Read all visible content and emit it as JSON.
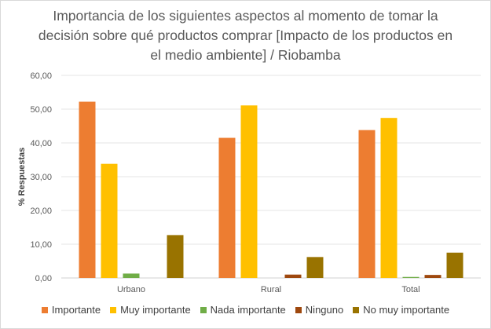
{
  "chart_data": {
    "type": "bar",
    "title": "Importancia de los siguientes aspectos al momento de tomar la decisión sobre qué productos comprar [Impacto de los productos en el medio ambiente] / Riobamba",
    "xlabel": "",
    "ylabel": "% Respuestas",
    "ylim": [
      0,
      60
    ],
    "yticks": [
      "0,00",
      "10,00",
      "20,00",
      "30,00",
      "40,00",
      "50,00",
      "60,00"
    ],
    "grid": true,
    "legend_position": "bottom",
    "categories": [
      "Urbano",
      "Rural",
      "Total"
    ],
    "series": [
      {
        "name": "Importante",
        "color": "#ED7D31",
        "values": [
          52.2,
          41.5,
          43.8
        ]
      },
      {
        "name": "Muy importante",
        "color": "#FFC000",
        "values": [
          33.8,
          51.1,
          47.4
        ]
      },
      {
        "name": "Nada importante",
        "color": "#70AD47",
        "values": [
          1.3,
          0,
          0.3
        ]
      },
      {
        "name": "Ninguno",
        "color": "#9E480E",
        "values": [
          0,
          1.0,
          0.9
        ]
      },
      {
        "name": "No muy importante",
        "color": "#997300",
        "values": [
          12.7,
          6.2,
          7.5
        ]
      }
    ]
  }
}
